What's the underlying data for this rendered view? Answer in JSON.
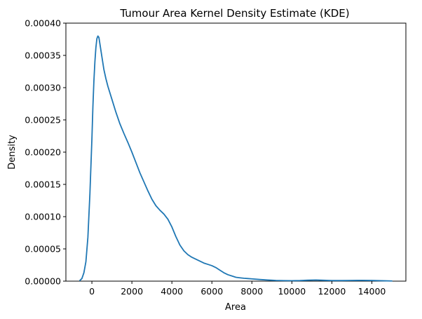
{
  "chart_data": {
    "type": "line",
    "title": "Tumour Area Kernel Density Estimate (KDE)",
    "xlabel": "Area",
    "ylabel": "Density",
    "xlim": [
      -1300,
      15700
    ],
    "ylim": [
      0,
      0.0004
    ],
    "grid": false,
    "legend": "none",
    "x_ticks": [
      0,
      2000,
      4000,
      6000,
      8000,
      10000,
      12000,
      14000
    ],
    "x_tick_labels": [
      "0",
      "2000",
      "4000",
      "6000",
      "8000",
      "10000",
      "12000",
      "14000"
    ],
    "y_ticks": [
      0,
      5e-05,
      0.0001,
      0.00015,
      0.0002,
      0.00025,
      0.0003,
      0.00035,
      0.0004
    ],
    "y_tick_labels": [
      "0.00000",
      "0.00005",
      "0.00010",
      "0.00015",
      "0.00020",
      "0.00025",
      "0.00030",
      "0.00035",
      "0.00040"
    ],
    "series": [
      {
        "color": "#1f77b4",
        "x": [
          -600,
          -500,
          -400,
          -300,
          -200,
          -100,
          0,
          50,
          100,
          150,
          200,
          250,
          300,
          350,
          400,
          500,
          600,
          700,
          800,
          1000,
          1200,
          1400,
          1600,
          1800,
          2000,
          2200,
          2400,
          2600,
          2800,
          3000,
          3200,
          3400,
          3600,
          3800,
          4000,
          4200,
          4400,
          4600,
          4800,
          5000,
          5200,
          5400,
          5600,
          5800,
          6000,
          6200,
          6400,
          6600,
          6800,
          7000,
          7200,
          7400,
          7600,
          7800,
          8000,
          8400,
          8800,
          9200,
          9600,
          10000,
          10400,
          10800,
          11200,
          11600,
          12000,
          12500,
          13000,
          13500,
          14000,
          14500,
          15000
        ],
        "y": [
          1e-06,
          4e-06,
          1.3e-05,
          3e-05,
          6.8e-05,
          0.000135,
          0.00022,
          0.00027,
          0.00031,
          0.00034,
          0.000362,
          0.000376,
          0.00038,
          0.000378,
          0.000368,
          0.000348,
          0.000328,
          0.000314,
          0.000302,
          0.000282,
          0.000262,
          0.000244,
          0.000229,
          0.000215,
          0.0002,
          0.000184,
          0.000168,
          0.000154,
          0.00014,
          0.000127,
          0.000117,
          0.00011,
          0.000104,
          9.6e-05,
          8.4e-05,
          6.9e-05,
          5.6e-05,
          4.7e-05,
          4.1e-05,
          3.7e-05,
          3.4e-05,
          3.1e-05,
          2.8e-05,
          2.6e-05,
          2.4e-05,
          2.1e-05,
          1.7e-05,
          1.3e-05,
          1e-05,
          8e-06,
          6e-06,
          5.2e-06,
          4.5e-06,
          4e-06,
          3.5e-06,
          2.5e-06,
          1.7e-06,
          1.1e-06,
          8e-07,
          7e-07,
          9e-07,
          1.4e-06,
          1.8e-06,
          1.3e-06,
          9e-07,
          9e-07,
          1.1e-06,
          1.2e-06,
          1e-06,
          6e-07,
          3e-07
        ]
      }
    ]
  }
}
